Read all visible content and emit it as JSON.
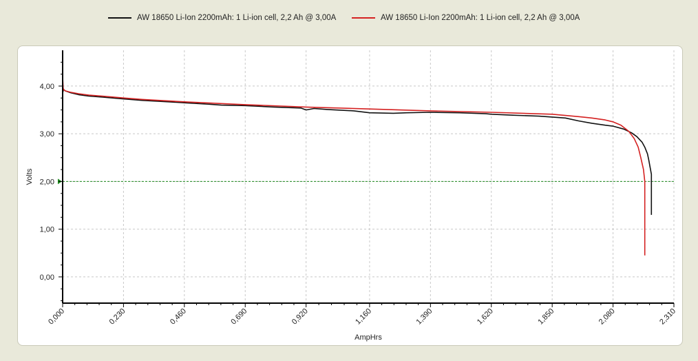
{
  "chart_data": {
    "type": "line",
    "xlabel": "AmpHrs",
    "ylabel": "Volts",
    "xlim": [
      0.0,
      2.31
    ],
    "ylim": [
      -0.55,
      4.75
    ],
    "x_ticks": [
      "0,000",
      "0,230",
      "0,460",
      "0,690",
      "0,920",
      "1,160",
      "1,390",
      "1,620",
      "1,850",
      "2,080",
      "2,310"
    ],
    "x_tick_values": [
      0.0,
      0.23,
      0.46,
      0.69,
      0.92,
      1.16,
      1.39,
      1.62,
      1.85,
      2.08,
      2.31
    ],
    "y_ticks": [
      "0,00",
      "1,00",
      "2,00",
      "3,00",
      "4,00"
    ],
    "y_tick_values": [
      0,
      1,
      2,
      3,
      4
    ],
    "grid": true,
    "legend_position": "top",
    "reference_line": {
      "y": 2.0,
      "color": "#1e8a1e"
    },
    "series": [
      {
        "name": "AW 18650 Li-Ion 2200mAh: 1 Li-ion cell, 2,2 Ah @ 3,00A",
        "color": "#111111",
        "x": [
          0.0,
          0.003,
          0.01,
          0.03,
          0.06,
          0.1,
          0.15,
          0.23,
          0.3,
          0.4,
          0.46,
          0.55,
          0.6,
          0.69,
          0.8,
          0.9,
          0.92,
          0.95,
          1.0,
          1.1,
          1.16,
          1.25,
          1.3,
          1.39,
          1.5,
          1.6,
          1.62,
          1.7,
          1.8,
          1.85,
          1.9,
          1.95,
          2.0,
          2.05,
          2.08,
          2.12,
          2.15,
          2.17,
          2.19,
          2.2,
          2.21,
          2.215,
          2.22,
          2.225,
          2.225
        ],
        "y": [
          3.85,
          3.93,
          3.9,
          3.86,
          3.82,
          3.79,
          3.77,
          3.73,
          3.7,
          3.67,
          3.65,
          3.62,
          3.6,
          3.59,
          3.56,
          3.54,
          3.5,
          3.53,
          3.51,
          3.48,
          3.44,
          3.43,
          3.44,
          3.45,
          3.44,
          3.42,
          3.41,
          3.39,
          3.37,
          3.35,
          3.33,
          3.27,
          3.22,
          3.18,
          3.16,
          3.1,
          3.02,
          2.94,
          2.82,
          2.72,
          2.58,
          2.45,
          2.3,
          2.15,
          1.3
        ]
      },
      {
        "name": "AW 18650 Li-Ion 2200mAh: 1 Li-ion cell, 2,2 Ah @ 3,00A",
        "color": "#d42020",
        "x": [
          0.0,
          0.002,
          0.005,
          0.01,
          0.03,
          0.06,
          0.1,
          0.15,
          0.23,
          0.3,
          0.46,
          0.69,
          0.92,
          1.16,
          1.39,
          1.62,
          1.85,
          1.95,
          2.0,
          2.05,
          2.08,
          2.11,
          2.14,
          2.16,
          2.175,
          2.185,
          2.195,
          2.2,
          2.2
        ],
        "y": [
          4.2,
          3.95,
          3.92,
          3.9,
          3.87,
          3.84,
          3.81,
          3.79,
          3.75,
          3.72,
          3.67,
          3.61,
          3.56,
          3.52,
          3.48,
          3.45,
          3.41,
          3.36,
          3.33,
          3.29,
          3.25,
          3.18,
          3.05,
          2.9,
          2.72,
          2.5,
          2.25,
          2.0,
          0.45
        ]
      }
    ]
  }
}
